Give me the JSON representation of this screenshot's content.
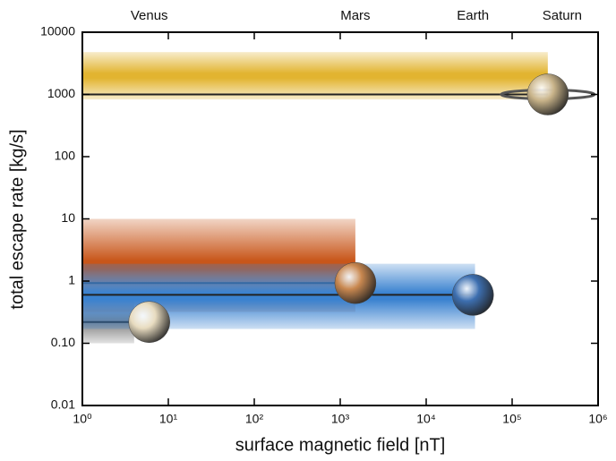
{
  "chart_data": {
    "type": "band",
    "xlabel": "surface magnetic field [nT]",
    "ylabel": "total escape rate [kg/s]",
    "xscale": "log",
    "yscale": "log",
    "xlim": [
      1,
      1000000
    ],
    "xticks": [
      {
        "value": 1,
        "label": "10⁰"
      },
      {
        "value": 10,
        "label": "10¹"
      },
      {
        "value": 100,
        "label": "10²"
      },
      {
        "value": 1000,
        "label": "10³"
      },
      {
        "value": 10000,
        "label": "10⁴"
      },
      {
        "value": 100000,
        "label": "10⁵"
      },
      {
        "value": 1000000,
        "label": "10⁶"
      }
    ],
    "ylim": [
      0.01,
      10000
    ],
    "yticks": [
      0.01,
      {
        "value": 0.1,
        "label": "0.10"
      },
      1,
      10,
      100,
      1000,
      10000
    ],
    "series": [
      {
        "name": "Venus",
        "color": "#8a8a8a",
        "x_max": 4,
        "low": 0.1,
        "high": 0.5,
        "rate": 0.22,
        "planet_x": 6,
        "planet_color": "#e8dcc0"
      },
      {
        "name": "Mars",
        "color": "#c8561a",
        "x_max": 1500,
        "low": 0.32,
        "high": 10,
        "rate": 0.93,
        "planet_x": 1500,
        "planet_color": "#c98850"
      },
      {
        "name": "Earth",
        "color": "#3a82d0",
        "x_max": 37000,
        "low": 0.17,
        "high": 1.9,
        "rate": 0.6,
        "planet_x": 35000,
        "planet_color": "#3d6fb0"
      },
      {
        "name": "Saturn",
        "color": "#e2b430",
        "x_max": 260000,
        "low": 830,
        "high": 4800,
        "rate": 1000,
        "planet_x": 260000,
        "planet_color": "#c9b48a"
      }
    ]
  }
}
